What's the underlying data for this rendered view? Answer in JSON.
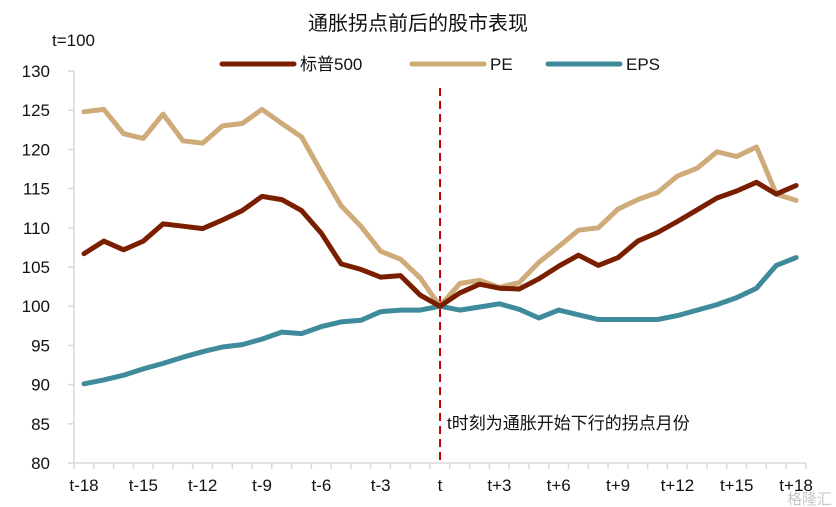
{
  "chart_data": {
    "type": "line",
    "title": "通胀拐点前后的股市表现",
    "ylabel": "t=100",
    "xlabel": "",
    "ylim": [
      80,
      130
    ],
    "yticks": [
      80,
      85,
      90,
      95,
      100,
      105,
      110,
      115,
      120,
      125,
      130
    ],
    "x": [
      "t-18",
      "t-17",
      "t-16",
      "t-15",
      "t-14",
      "t-13",
      "t-12",
      "t-11",
      "t-10",
      "t-9",
      "t-8",
      "t-7",
      "t-6",
      "t-5",
      "t-4",
      "t-3",
      "t-2",
      "t-1",
      "t",
      "t+1",
      "t+2",
      "t+3",
      "t+4",
      "t+5",
      "t+6",
      "t+7",
      "t+8",
      "t+9",
      "t+10",
      "t+11",
      "t+12",
      "t+13",
      "t+14",
      "t+15",
      "t+16",
      "t+17",
      "t+18"
    ],
    "xtick_labels": [
      "t-18",
      "t-15",
      "t-12",
      "t-9",
      "t-6",
      "t-3",
      "t",
      "t+3",
      "t+6",
      "t+9",
      "t+12",
      "t+15",
      "t+18"
    ],
    "grid": false,
    "legend_position": "top-center",
    "series": [
      {
        "name": "标普500",
        "color": "#7a1e00",
        "values": [
          106.7,
          108.3,
          107.2,
          108.3,
          110.5,
          110.2,
          109.9,
          111.0,
          112.2,
          114.0,
          113.6,
          112.2,
          109.3,
          105.4,
          104.7,
          103.7,
          103.9,
          101.4,
          100.0,
          101.7,
          102.8,
          102.3,
          102.2,
          103.5,
          105.1,
          106.5,
          105.2,
          106.2,
          108.3,
          109.4,
          110.8,
          112.3,
          113.8,
          114.7,
          115.8,
          114.3,
          115.4
        ]
      },
      {
        "name": "PE",
        "color": "#cfab7a",
        "values": [
          124.8,
          125.1,
          122.0,
          121.4,
          124.5,
          121.1,
          120.8,
          123.0,
          123.3,
          125.1,
          123.3,
          121.6,
          117.1,
          112.8,
          110.2,
          107.0,
          106.0,
          103.6,
          100.0,
          102.9,
          103.3,
          102.4,
          103.0,
          105.6,
          107.6,
          109.7,
          110.0,
          112.4,
          113.6,
          114.5,
          116.6,
          117.6,
          119.7,
          119.1,
          120.3,
          114.3,
          113.5
        ]
      },
      {
        "name": "EPS",
        "color": "#3f8a9b",
        "values": [
          90.1,
          90.6,
          91.2,
          92.0,
          92.7,
          93.5,
          94.2,
          94.8,
          95.1,
          95.8,
          96.7,
          96.5,
          97.4,
          98.0,
          98.2,
          99.3,
          99.5,
          99.5,
          100.0,
          99.5,
          99.9,
          100.3,
          99.6,
          98.5,
          99.5,
          98.9,
          98.3,
          98.3,
          98.3,
          98.3,
          98.8,
          99.5,
          100.2,
          101.1,
          102.3,
          105.2,
          106.2
        ]
      }
    ],
    "reference_line": {
      "x": "t",
      "color": "#c00000",
      "style": "dashed"
    },
    "annotations": [
      {
        "text": "t时刻为通胀开始下行的拐点月份",
        "x": "t"
      }
    ],
    "watermark": "格隆汇"
  }
}
